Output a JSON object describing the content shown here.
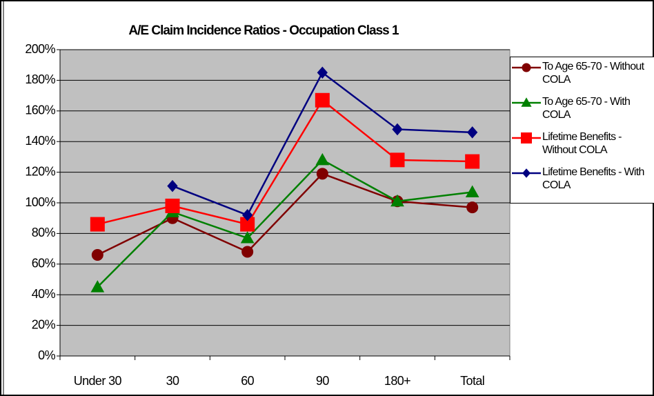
{
  "chart_data": {
    "type": "line",
    "title": "A/E Claim Incidence Ratios - Occupation Class 1",
    "categories": [
      "Under 30",
      "30",
      "60",
      "90",
      "180+",
      "Total"
    ],
    "series": [
      {
        "name": "To Age 65-70 - Without COLA",
        "color": "#800000",
        "marker": "circle",
        "values": [
          66,
          90,
          68,
          119,
          101,
          97
        ]
      },
      {
        "name": "To Age 65-70 - With COLA",
        "color": "#008000",
        "marker": "triangle",
        "values": [
          45,
          94,
          77,
          128,
          101,
          107
        ]
      },
      {
        "name": "Lifetime Benefits - Without COLA",
        "color": "#ff0000",
        "marker": "square",
        "values": [
          86,
          98,
          86,
          167,
          128,
          127
        ]
      },
      {
        "name": "Lifetime Benefits - With COLA",
        "color": "#000080",
        "marker": "diamond",
        "values": [
          null,
          111,
          92,
          185,
          148,
          146
        ]
      }
    ],
    "ylim": [
      0,
      200
    ],
    "yticks": [
      {
        "value": 0,
        "label": "0%"
      },
      {
        "value": 20,
        "label": "20%"
      },
      {
        "value": 40,
        "label": "40%"
      },
      {
        "value": 60,
        "label": "60%"
      },
      {
        "value": 80,
        "label": "80%"
      },
      {
        "value": 100,
        "label": "100%"
      },
      {
        "value": 120,
        "label": "120%"
      },
      {
        "value": 140,
        "label": "140%"
      },
      {
        "value": 160,
        "label": "160%"
      },
      {
        "value": 180,
        "label": "180%"
      },
      {
        "value": 200,
        "label": "200%"
      }
    ],
    "grid": true,
    "plot_background": "#c0c0c0",
    "legend": "right"
  }
}
